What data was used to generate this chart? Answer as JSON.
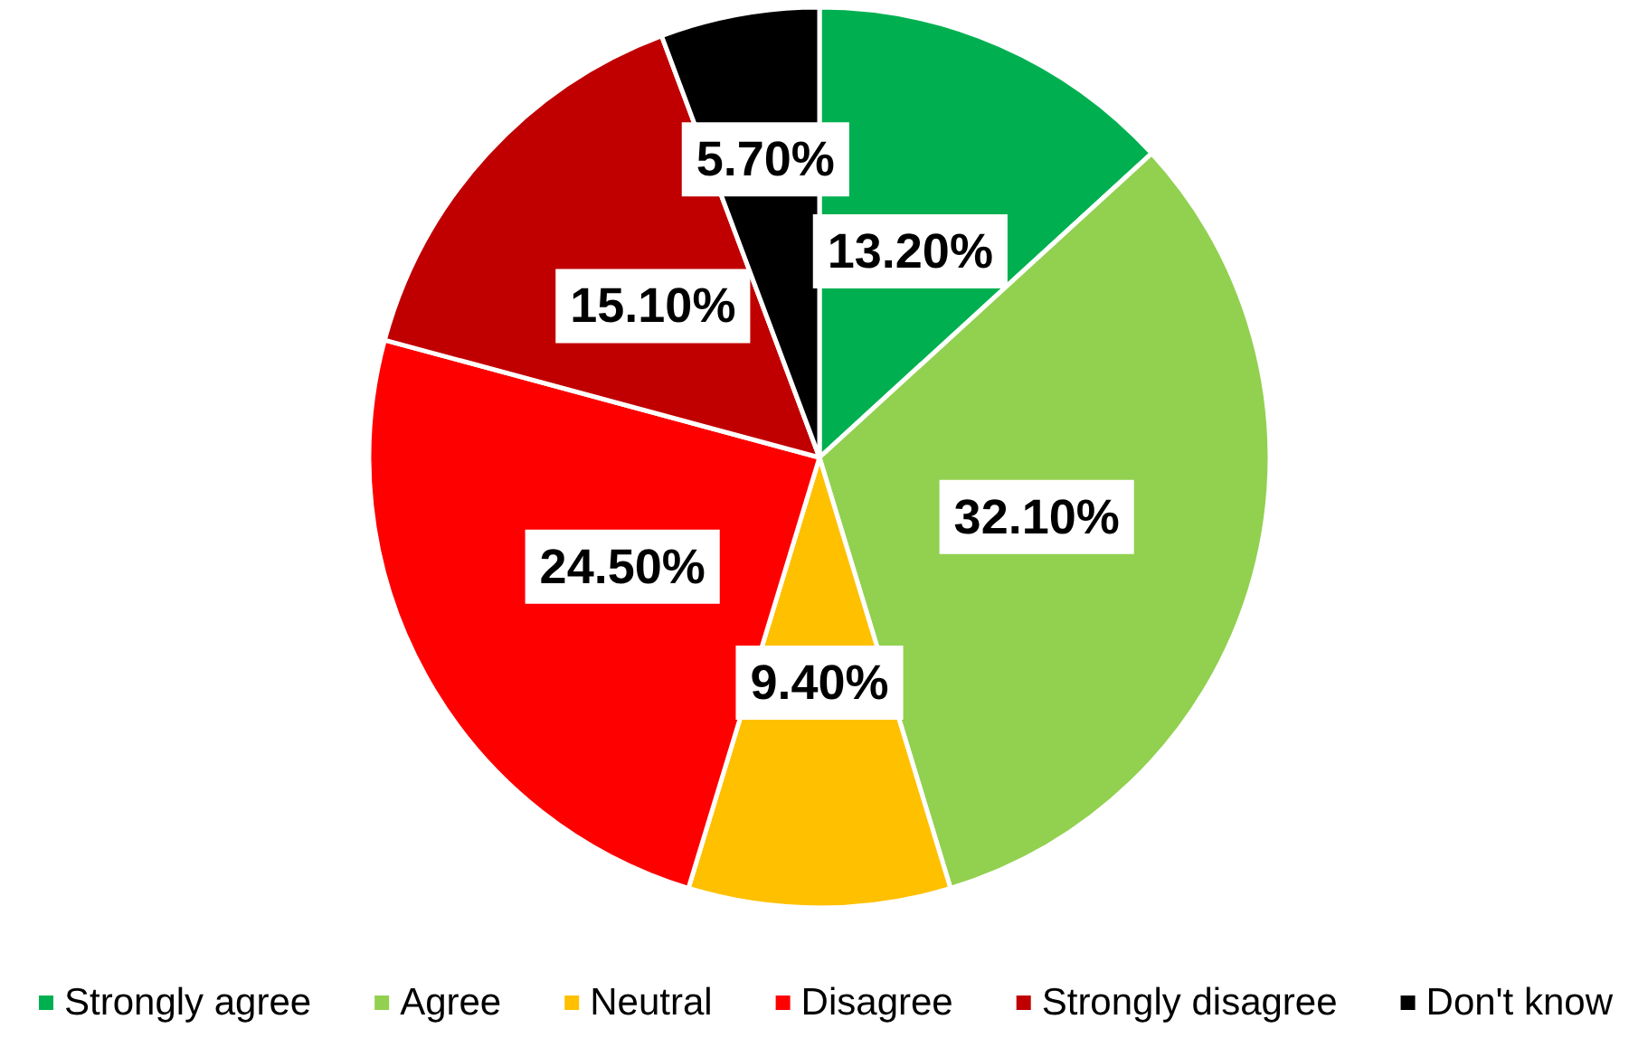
{
  "chart_data": {
    "type": "pie",
    "categories": [
      "Strongly agree",
      "Agree",
      "Neutral",
      "Disagree",
      "Strongly disagree",
      "Don't know"
    ],
    "values": [
      13.2,
      32.1,
      9.4,
      24.5,
      15.1,
      5.7
    ],
    "colors": [
      "#00b050",
      "#92d050",
      "#ffc000",
      "#ff0000",
      "#c00000",
      "#000000"
    ],
    "value_labels": [
      "13.20%",
      "32.10%",
      "9.40%",
      "24.50%",
      "15.10%",
      "5.70%"
    ],
    "legend": "bottom"
  }
}
